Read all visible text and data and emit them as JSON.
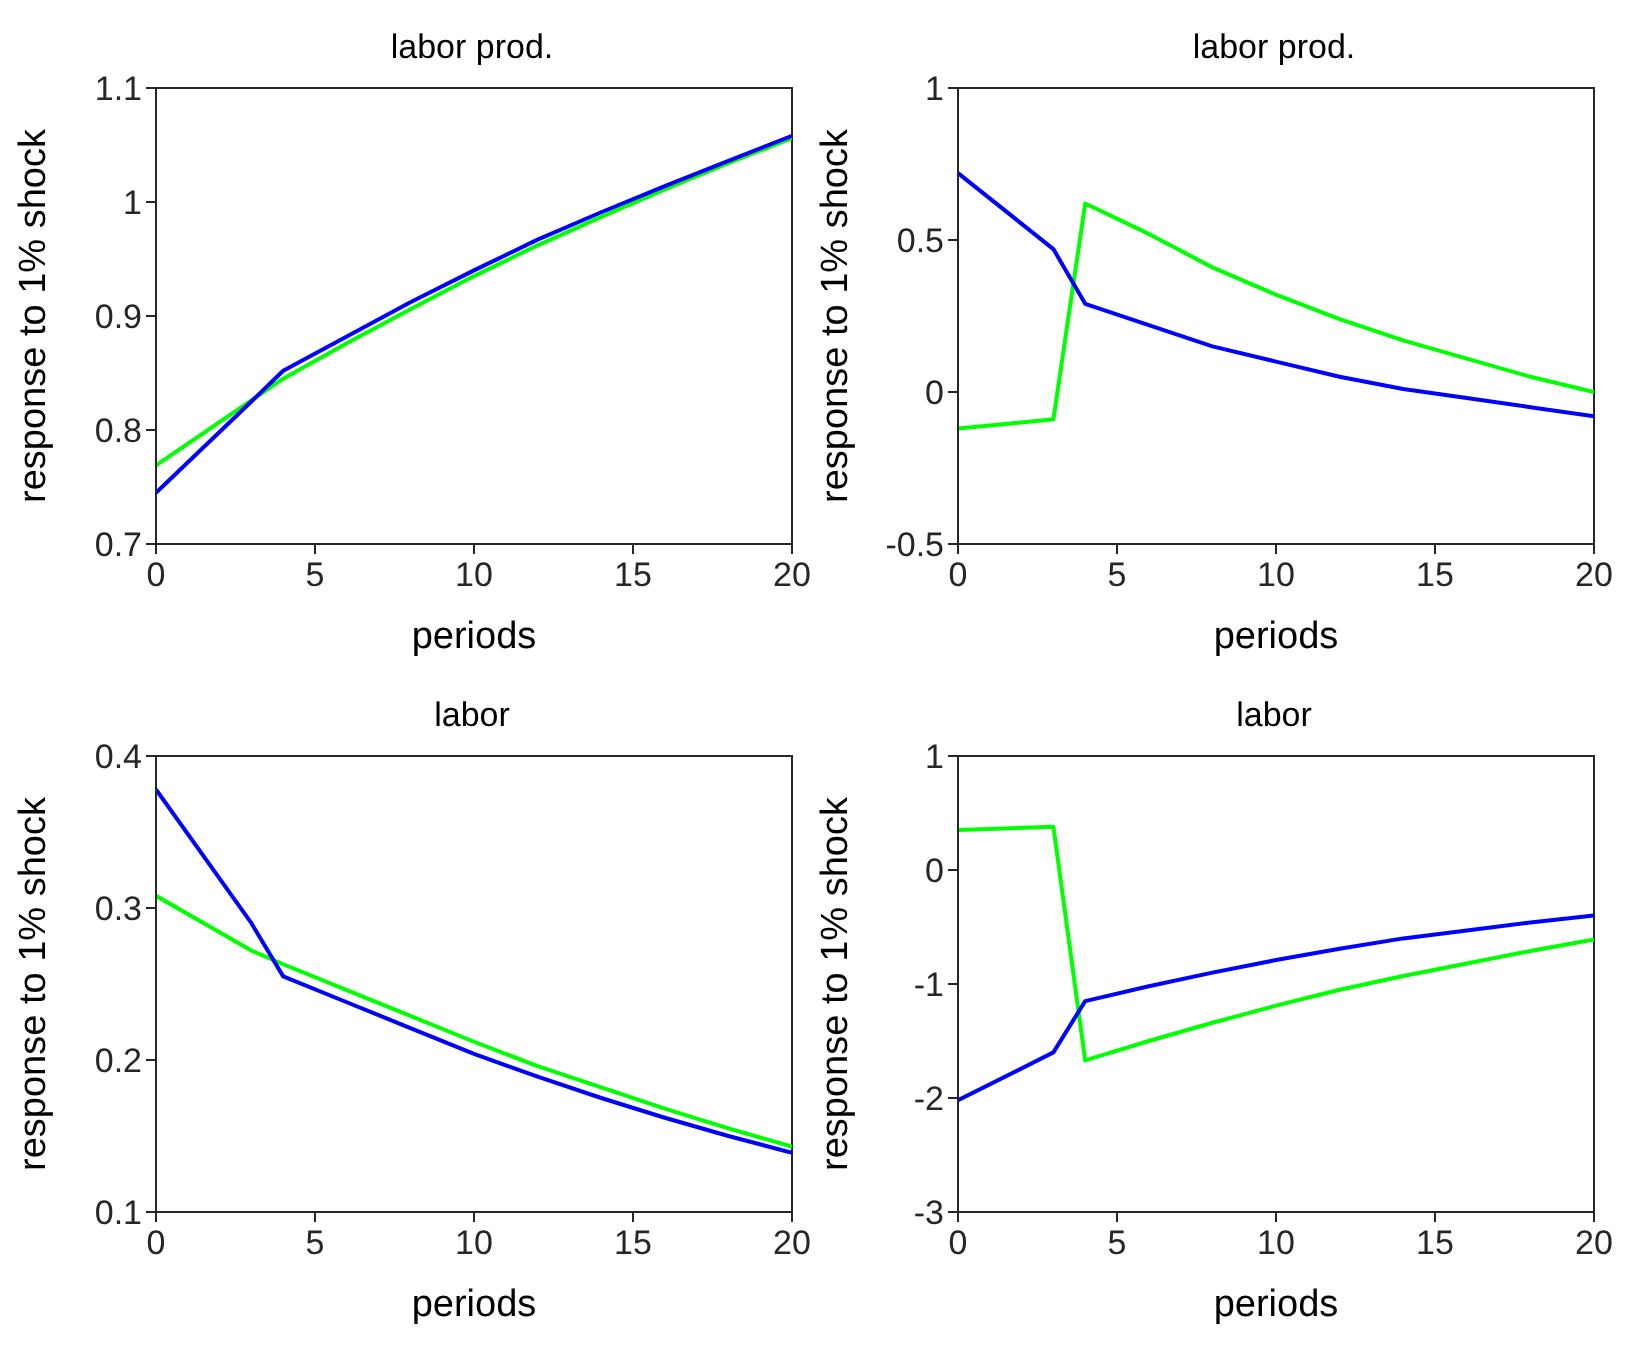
{
  "chart_data": [
    {
      "type": "line",
      "title": "labor prod.",
      "xlabel": "periods",
      "ylabel": "response to 1% shock",
      "xlim": [
        0,
        20
      ],
      "xticks": [
        0,
        5,
        10,
        15,
        20
      ],
      "ylim": [
        0.7,
        1.1
      ],
      "yticks": [
        0.7,
        0.8,
        0.9,
        1,
        1.1
      ],
      "line_style": "solid",
      "series": [
        {
          "color": "#00ff00",
          "x": [
            0,
            3,
            4,
            6,
            8,
            10,
            12,
            14,
            16,
            18,
            20
          ],
          "values": [
            0.769,
            0.826,
            0.845,
            0.876,
            0.906,
            0.935,
            0.962,
            0.987,
            1.011,
            1.034,
            1.056
          ]
        },
        {
          "color": "#0000ff",
          "x": [
            0,
            3,
            4,
            6,
            8,
            10,
            12,
            14,
            16,
            18,
            20
          ],
          "values": [
            0.745,
            0.825,
            0.852,
            0.882,
            0.912,
            0.94,
            0.967,
            0.991,
            1.014,
            1.036,
            1.058
          ]
        }
      ]
    },
    {
      "type": "line",
      "title": "labor prod.",
      "xlabel": "periods",
      "ylabel": "response to 1% shock",
      "xlim": [
        0,
        20
      ],
      "xticks": [
        0,
        5,
        10,
        15,
        20
      ],
      "ylim": [
        -0.5,
        1
      ],
      "yticks": [
        -0.5,
        0,
        0.5,
        1
      ],
      "line_style": "solid",
      "series": [
        {
          "color": "#00ff00",
          "x": [
            0,
            3,
            4,
            6,
            8,
            10,
            12,
            14,
            16,
            18,
            20
          ],
          "values": [
            -0.12,
            -0.09,
            0.62,
            0.52,
            0.41,
            0.32,
            0.24,
            0.17,
            0.11,
            0.05,
            0.0
          ]
        },
        {
          "color": "#0000ff",
          "x": [
            0,
            3,
            4,
            6,
            8,
            10,
            12,
            14,
            16,
            18,
            20
          ],
          "values": [
            0.72,
            0.47,
            0.29,
            0.22,
            0.15,
            0.1,
            0.05,
            0.01,
            -0.02,
            -0.05,
            -0.08
          ]
        }
      ]
    },
    {
      "type": "line",
      "title": "labor",
      "xlabel": "periods",
      "ylabel": "response to 1% shock",
      "xlim": [
        0,
        20
      ],
      "xticks": [
        0,
        5,
        10,
        15,
        20
      ],
      "ylim": [
        0.1,
        0.4
      ],
      "yticks": [
        0.1,
        0.2,
        0.3,
        0.4
      ],
      "line_style": "solid",
      "series": [
        {
          "color": "#00ff00",
          "x": [
            0,
            3,
            4,
            6,
            8,
            10,
            12,
            14,
            16,
            18,
            20
          ],
          "values": [
            0.308,
            0.272,
            0.263,
            0.246,
            0.229,
            0.212,
            0.196,
            0.182,
            0.168,
            0.155,
            0.143
          ]
        },
        {
          "color": "#0000ff",
          "x": [
            0,
            3,
            4,
            6,
            8,
            10,
            12,
            14,
            16,
            18,
            20
          ],
          "values": [
            0.378,
            0.29,
            0.255,
            0.238,
            0.221,
            0.204,
            0.189,
            0.175,
            0.162,
            0.15,
            0.139
          ]
        }
      ]
    },
    {
      "type": "line",
      "title": "labor",
      "xlabel": "periods",
      "ylabel": "response to 1% shock",
      "xlim": [
        0,
        20
      ],
      "xticks": [
        0,
        5,
        10,
        15,
        20
      ],
      "ylim": [
        -3,
        1
      ],
      "yticks": [
        -3,
        -2,
        -1,
        0,
        1
      ],
      "line_style": "solid",
      "series": [
        {
          "color": "#00ff00",
          "x": [
            0,
            3,
            4,
            6,
            8,
            10,
            12,
            14,
            16,
            18,
            20
          ],
          "values": [
            0.35,
            0.38,
            -1.67,
            -1.5,
            -1.34,
            -1.19,
            -1.05,
            -0.93,
            -0.82,
            -0.71,
            -0.61
          ]
        },
        {
          "color": "#0000ff",
          "x": [
            0,
            3,
            4,
            6,
            8,
            10,
            12,
            14,
            16,
            18,
            20
          ],
          "values": [
            -2.02,
            -1.6,
            -1.15,
            -1.02,
            -0.9,
            -0.79,
            -0.69,
            -0.6,
            -0.53,
            -0.46,
            -0.4
          ]
        }
      ]
    }
  ]
}
